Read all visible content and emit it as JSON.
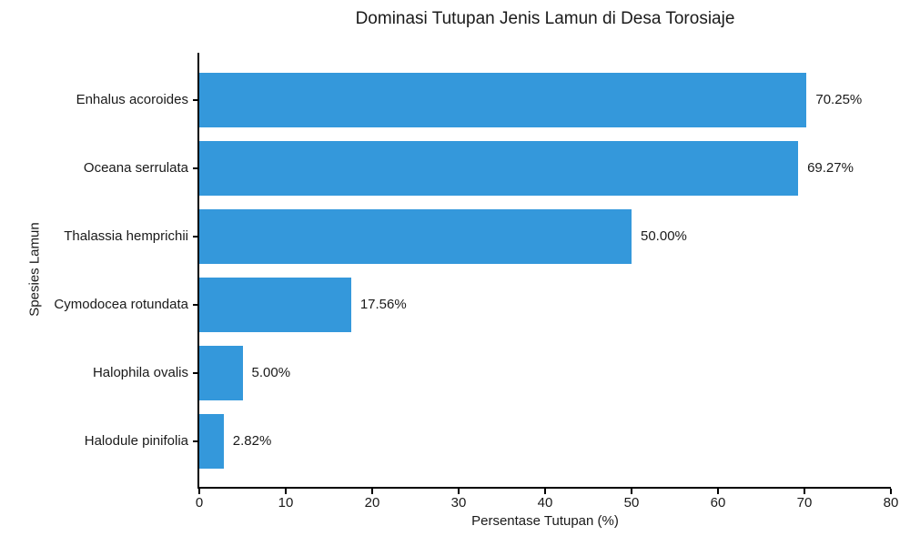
{
  "chart_data": {
    "type": "bar",
    "orientation": "horizontal",
    "title": "Dominasi Tutupan Jenis Lamun di Desa Torosiaje",
    "xlabel": "Persentase Tutupan (%)",
    "ylabel": "Spesies Lamun",
    "categories": [
      "Enhalus acoroides",
      "Oceana serrulata",
      "Thalassia hemprichii",
      "Cymodocea rotundata",
      "Halophila ovalis",
      "Halodule pinifolia"
    ],
    "values": [
      70.25,
      69.27,
      50.0,
      17.56,
      5.0,
      2.82
    ],
    "value_labels": [
      "70.25%",
      "69.27%",
      "50.00%",
      "17.56%",
      "5.00%",
      "2.82%"
    ],
    "xlim": [
      0,
      80
    ],
    "x_ticks": [
      0,
      10,
      20,
      30,
      40,
      50,
      60,
      70,
      80
    ],
    "bar_color": "#3498db",
    "text_color": "#1a1a1a",
    "grid": false,
    "legend": null
  }
}
